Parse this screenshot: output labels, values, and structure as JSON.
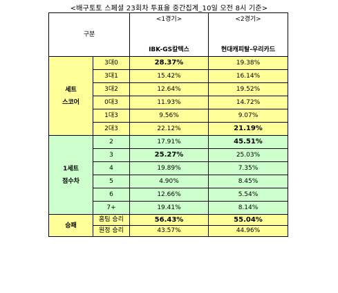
{
  "title": "<배구토토 스페셜 23회차 투표율 중간집계_10일 오전 8시 기준>",
  "header": {
    "gubun": "구분",
    "game1_label": "<1경기>",
    "game1_team": "IBK-GS칼텍스",
    "game2_label": "<2경기>",
    "game2_team": "현대캐피탈-우리카드"
  },
  "sections": [
    {
      "label_line1": "세트",
      "label_line2": "스코어",
      "color": "#ffff99",
      "rows": [
        {
          "label": "3대0",
          "g1": "28.37%",
          "g2": "19.38%",
          "g1_bold": true,
          "g2_bold": false
        },
        {
          "label": "3대1",
          "g1": "15.42%",
          "g2": "16.14%",
          "g1_bold": false,
          "g2_bold": false
        },
        {
          "label": "3대2",
          "g1": "12.64%",
          "g2": "19.52%",
          "g1_bold": false,
          "g2_bold": false
        },
        {
          "label": "0대3",
          "g1": "11.93%",
          "g2": "14.72%",
          "g1_bold": false,
          "g2_bold": false
        },
        {
          "label": "1대3",
          "g1": "9.56%",
          "g2": "9.07%",
          "g1_bold": false,
          "g2_bold": false
        },
        {
          "label": "2대3",
          "g1": "22.12%",
          "g2": "21.19%",
          "g1_bold": false,
          "g2_bold": true
        }
      ]
    },
    {
      "label_line1": "1세트",
      "label_line2": "점수차",
      "color": "#ccffcc",
      "rows": [
        {
          "label": "2",
          "g1": "17.91%",
          "g2": "45.51%",
          "g1_bold": false,
          "g2_bold": true
        },
        {
          "label": "3",
          "g1": "25.27%",
          "g2": "25.03%",
          "g1_bold": true,
          "g2_bold": false
        },
        {
          "label": "4",
          "g1": "19.89%",
          "g2": "7.35%",
          "g1_bold": false,
          "g2_bold": false
        },
        {
          "label": "5",
          "g1": "4.90%",
          "g2": "8.45%",
          "g1_bold": false,
          "g2_bold": false
        },
        {
          "label": "6",
          "g1": "12.66%",
          "g2": "5.54%",
          "g1_bold": false,
          "g2_bold": false
        },
        {
          "label": "7+",
          "g1": "19.41%",
          "g2": "8.14%",
          "g1_bold": false,
          "g2_bold": false
        }
      ]
    },
    {
      "label_line1": "승패",
      "label_line2": "",
      "color": "#ffff99",
      "rows": [
        {
          "label": "홈팀 승리",
          "g1": "56.43%",
          "g2": "55.04%",
          "g1_bold": true,
          "g2_bold": true
        },
        {
          "label": "원정 승리",
          "g1": "43.57%",
          "g2": "44.96%",
          "g1_bold": false,
          "g2_bold": false
        }
      ]
    }
  ]
}
